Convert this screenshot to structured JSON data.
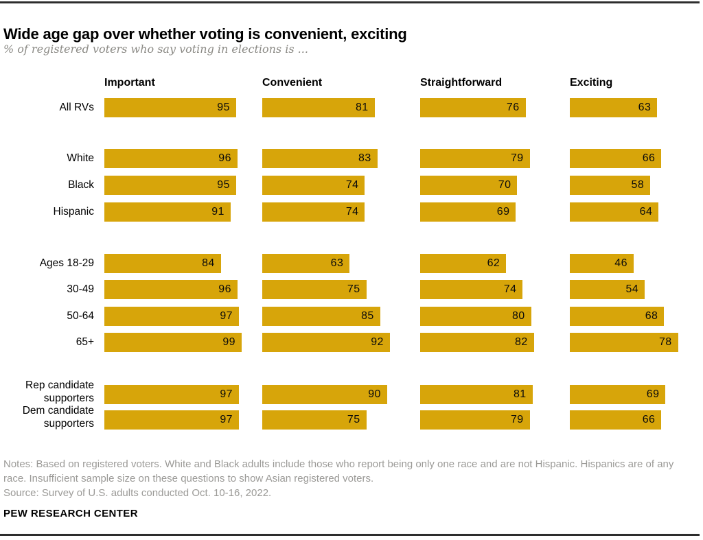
{
  "page": {
    "title": "Wide age gap over whether voting is convenient, exciting",
    "subtitle": "% of registered voters who say voting in elections is ...",
    "notes": "Notes: Based on registered voters. White and Black adults include those who report being only one race and are not Hispanic. Hispanics are of any race. Insufficient sample size on these questions to show Asian registered voters.",
    "source": "Source: Survey of U.S. adults conducted Oct. 10-16, 2022.",
    "footer": "PEW RESEARCH CENTER"
  },
  "colors": {
    "bar": "#d7a50a",
    "rule": "#2d2d2d",
    "subtitle_text": "#8b8a85",
    "notes_text": "#9b9a97"
  },
  "chart_data": {
    "type": "bar",
    "orientation": "horizontal",
    "unit": "%",
    "xlim": [
      0,
      100
    ],
    "columns": [
      "Important",
      "Convenient",
      "Straightforward",
      "Exciting"
    ],
    "rows": [
      {
        "label": "All RVs",
        "values": [
          95,
          81,
          76,
          63
        ]
      },
      {
        "label": "White",
        "values": [
          96,
          83,
          79,
          66
        ]
      },
      {
        "label": "Black",
        "values": [
          95,
          74,
          70,
          58
        ]
      },
      {
        "label": "Hispanic",
        "values": [
          91,
          74,
          69,
          64
        ]
      },
      {
        "label": "Ages 18-29",
        "values": [
          84,
          63,
          62,
          46
        ]
      },
      {
        "label": "30-49",
        "values": [
          96,
          75,
          74,
          54
        ]
      },
      {
        "label": "50-64",
        "values": [
          97,
          85,
          80,
          68
        ]
      },
      {
        "label": "65+",
        "values": [
          99,
          92,
          82,
          78
        ]
      },
      {
        "label": "Rep candidate\nsupporters",
        "values": [
          97,
          90,
          81,
          69
        ]
      },
      {
        "label": "Dem candidate\nsupporters",
        "values": [
          97,
          75,
          79,
          66
        ]
      }
    ]
  }
}
